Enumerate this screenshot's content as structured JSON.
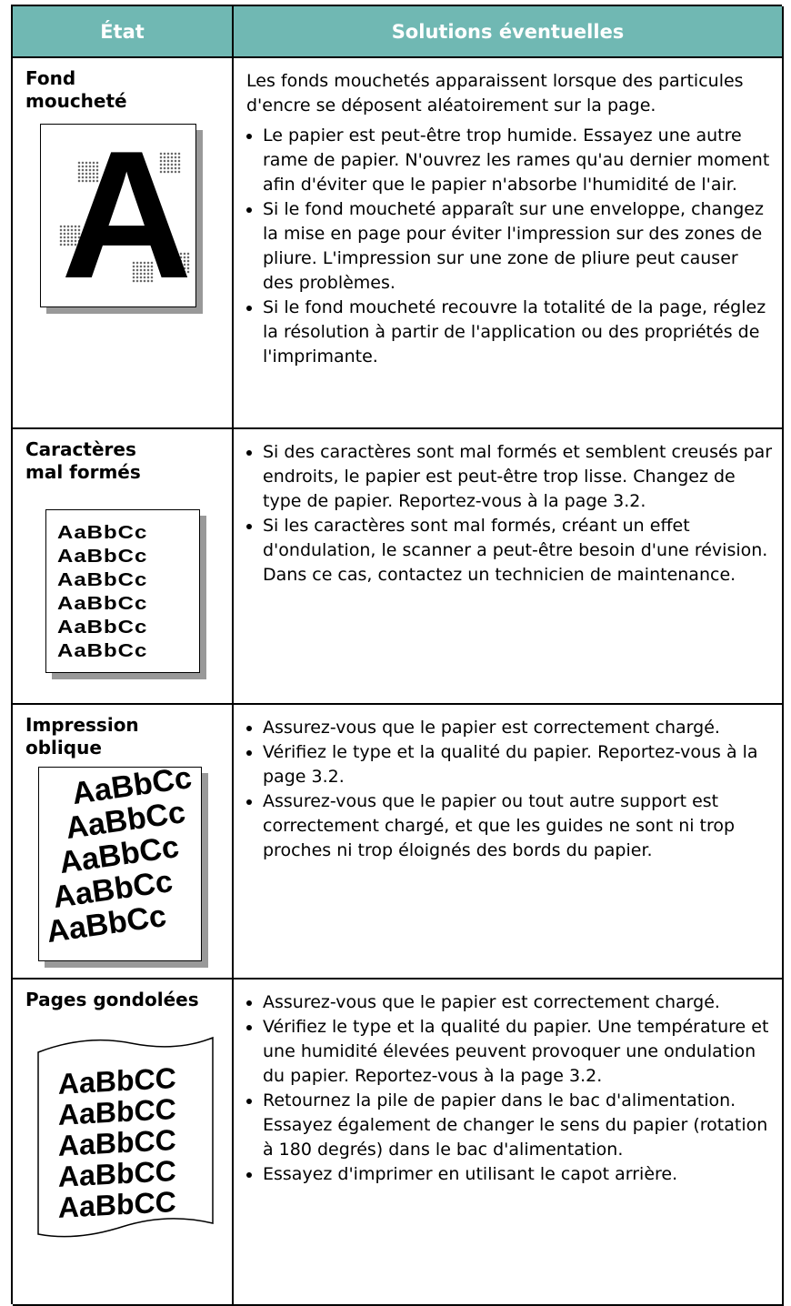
{
  "table": {
    "headers": [
      "État",
      "Solutions éventuelles"
    ],
    "rows": [
      {
        "condition": "Fond moucheté",
        "illustration": [
          "A"
        ],
        "intro": "Les fonds mouchetés apparaissent lorsque des particules d'encre se déposent aléatoirement sur la page.",
        "bullets": [
          "Le papier est peut-être trop humide. Essayez une autre rame de papier. N'ouvrez les rames qu'au dernier moment afin d'éviter que le papier n'absorbe l'humidité de l'air.",
          "Si le fond moucheté apparaît sur une enveloppe, changez la mise en page pour éviter l'impression sur des zones de pliure. L'impression sur une zone de pliure peut causer des problèmes.",
          "Si le fond moucheté recouvre la totalité de la page, réglez la résolution à partir de l'application ou des propriétés de l'imprimante."
        ]
      },
      {
        "condition": "Caractères mal formés",
        "illustration": [
          "AaBbCc",
          "AaBbCc",
          "AaBbCc",
          "AaBbCc",
          "AaBbCc",
          "AaBbCc"
        ],
        "bullets": [
          "Si des caractères sont mal formés et semblent creusés par endroits, le papier est peut-être trop lisse. Changez de type de papier. Reportez-vous à la page 3.2.",
          "Si les caractères sont mal formés, créant un effet d'ondulation, le scanner a peut-être besoin d'une révision. Dans ce cas, contactez un technicien de maintenance."
        ]
      },
      {
        "condition": "Impression oblique",
        "illustration": [
          "AaBbCc",
          "AaBbCc",
          "AaBbCc",
          "AaBbCc",
          "AaBbCc"
        ],
        "bullets": [
          "Assurez-vous que le papier est correctement chargé.",
          "Vérifiez le type et la qualité du papier. Reportez-vous à la page 3.2.",
          "Assurez-vous que le papier ou tout autre support est correctement chargé, et que les guides ne sont ni trop proches ni trop éloignés des bords du papier."
        ]
      },
      {
        "condition": "Pages gondolées",
        "illustration": [
          "AaBbCC",
          "AaBbCC",
          "AaBbCC",
          "AaBbCC",
          "AaBbCC"
        ],
        "bullets": [
          "Assurez-vous que le papier est correctement chargé.",
          "Vérifiez le type et la qualité du papier. Une température et une humidité élevées peuvent provoquer une ondulation du papier. Reportez-vous à la page 3.2.",
          "Retournez la pile de papier dans le bac d'alimentation. Essayez également de changer le sens du papier (rotation à 180 degrés) dans le bac d'alimentation.",
          "Essayez d'imprimer en utilisant le capot arrière."
        ]
      }
    ]
  }
}
